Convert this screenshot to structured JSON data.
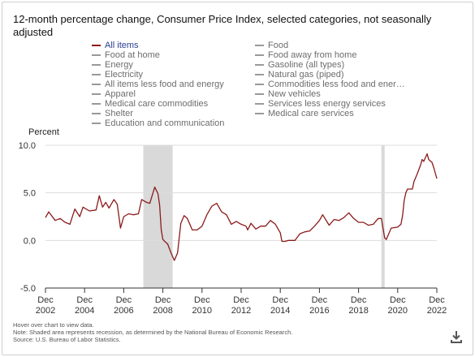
{
  "title": "12-month percentage change, Consumer Price Index, selected categories, not seasonally adjusted",
  "legend": {
    "col1": [
      "All items",
      "Food at home",
      "Energy",
      "Electricity",
      "All items less food and energy",
      "Apparel",
      "Medical care commodities",
      "Shelter",
      "Education and communication"
    ],
    "col2": [
      "Food",
      "Food away from home",
      "Gasoline (all types)",
      "Natural gas (piped)",
      "Commodities less food and ener…",
      "New vehicles",
      "Services less energy services",
      "Medical care services"
    ]
  },
  "footnote": {
    "line1": "Hover over chart to view data.",
    "line2": "Note: Shaded area represents recession, as determined by the National Bureau of Economic Research.",
    "line3": "Source: U.S. Bureau of Labor Statistics."
  },
  "icons": {
    "download": "download-icon"
  },
  "colors": {
    "series": "#8b1a1a",
    "recession": "#d9d9d9",
    "active_legend": "#2a3f8f"
  },
  "chart_data": {
    "type": "line",
    "title": "12-month percentage change, Consumer Price Index, selected categories, not seasonally adjusted",
    "ylabel": "Percent",
    "xlabel": "",
    "ylim": [
      -5.0,
      10.0
    ],
    "y_ticks": [
      "10.0",
      "5.0",
      "0.0",
      "-5.0"
    ],
    "x_ticks": [
      {
        "top": "Dec",
        "bottom": "2002"
      },
      {
        "top": "Dec",
        "bottom": "2004"
      },
      {
        "top": "Dec",
        "bottom": "2006"
      },
      {
        "top": "Dec",
        "bottom": "2008"
      },
      {
        "top": "Dec",
        "bottom": "2010"
      },
      {
        "top": "Dec",
        "bottom": "2012"
      },
      {
        "top": "Dec",
        "bottom": "2014"
      },
      {
        "top": "Dec",
        "bottom": "2016"
      },
      {
        "top": "Dec",
        "bottom": "2018"
      },
      {
        "top": "Dec",
        "bottom": "2020"
      },
      {
        "top": "Dec",
        "bottom": "2022"
      }
    ],
    "xlim": [
      "2002-12",
      "2022-12"
    ],
    "recessions": [
      [
        "2007-12",
        "2009-06"
      ],
      [
        "2020-02",
        "2020-04"
      ]
    ],
    "grid": true,
    "series": [
      {
        "name": "All items",
        "points": [
          [
            "2002-12",
            2.4
          ],
          [
            "2003-02",
            3.0
          ],
          [
            "2003-06",
            2.1
          ],
          [
            "2003-09",
            2.3
          ],
          [
            "2003-12",
            1.9
          ],
          [
            "2004-03",
            1.7
          ],
          [
            "2004-06",
            3.3
          ],
          [
            "2004-09",
            2.5
          ],
          [
            "2004-11",
            3.5
          ],
          [
            "2005-03",
            3.1
          ],
          [
            "2005-07",
            3.2
          ],
          [
            "2005-09",
            4.7
          ],
          [
            "2005-11",
            3.5
          ],
          [
            "2006-01",
            4.0
          ],
          [
            "2006-03",
            3.4
          ],
          [
            "2006-06",
            4.3
          ],
          [
            "2006-08",
            3.8
          ],
          [
            "2006-10",
            1.3
          ],
          [
            "2006-12",
            2.5
          ],
          [
            "2007-03",
            2.8
          ],
          [
            "2007-06",
            2.7
          ],
          [
            "2007-09",
            2.8
          ],
          [
            "2007-11",
            4.3
          ],
          [
            "2008-02",
            4.0
          ],
          [
            "2008-04",
            3.9
          ],
          [
            "2008-07",
            5.6
          ],
          [
            "2008-09",
            4.9
          ],
          [
            "2008-10",
            3.7
          ],
          [
            "2008-11",
            1.1
          ],
          [
            "2008-12",
            0.1
          ],
          [
            "2009-03",
            -0.4
          ],
          [
            "2009-05",
            -1.3
          ],
          [
            "2009-07",
            -2.1
          ],
          [
            "2009-09",
            -1.3
          ],
          [
            "2009-11",
            1.8
          ],
          [
            "2010-01",
            2.6
          ],
          [
            "2010-03",
            2.3
          ],
          [
            "2010-06",
            1.1
          ],
          [
            "2010-09",
            1.1
          ],
          [
            "2010-12",
            1.5
          ],
          [
            "2011-03",
            2.7
          ],
          [
            "2011-06",
            3.6
          ],
          [
            "2011-09",
            3.9
          ],
          [
            "2011-12",
            3.0
          ],
          [
            "2012-03",
            2.7
          ],
          [
            "2012-06",
            1.7
          ],
          [
            "2012-09",
            2.0
          ],
          [
            "2012-12",
            1.7
          ],
          [
            "2013-03",
            1.5
          ],
          [
            "2013-04",
            1.1
          ],
          [
            "2013-06",
            1.8
          ],
          [
            "2013-09",
            1.2
          ],
          [
            "2013-12",
            1.5
          ],
          [
            "2014-03",
            1.5
          ],
          [
            "2014-06",
            2.1
          ],
          [
            "2014-09",
            1.7
          ],
          [
            "2014-12",
            0.8
          ],
          [
            "2015-01",
            -0.1
          ],
          [
            "2015-03",
            -0.1
          ],
          [
            "2015-05",
            0.0
          ],
          [
            "2015-09",
            0.0
          ],
          [
            "2015-12",
            0.7
          ],
          [
            "2016-03",
            0.9
          ],
          [
            "2016-06",
            1.0
          ],
          [
            "2016-09",
            1.5
          ],
          [
            "2016-12",
            2.1
          ],
          [
            "2017-02",
            2.7
          ],
          [
            "2017-06",
            1.6
          ],
          [
            "2017-09",
            2.2
          ],
          [
            "2017-12",
            2.1
          ],
          [
            "2018-03",
            2.4
          ],
          [
            "2018-06",
            2.9
          ],
          [
            "2018-09",
            2.3
          ],
          [
            "2018-12",
            1.9
          ],
          [
            "2019-03",
            1.9
          ],
          [
            "2019-06",
            1.6
          ],
          [
            "2019-09",
            1.7
          ],
          [
            "2019-12",
            2.3
          ],
          [
            "2020-02",
            2.3
          ],
          [
            "2020-04",
            0.3
          ],
          [
            "2020-05",
            0.1
          ],
          [
            "2020-08",
            1.3
          ],
          [
            "2020-12",
            1.4
          ],
          [
            "2021-02",
            1.7
          ],
          [
            "2021-03",
            2.6
          ],
          [
            "2021-04",
            4.2
          ],
          [
            "2021-05",
            5.0
          ],
          [
            "2021-06",
            5.4
          ],
          [
            "2021-09",
            5.4
          ],
          [
            "2021-10",
            6.2
          ],
          [
            "2021-12",
            7.0
          ],
          [
            "2022-02",
            7.9
          ],
          [
            "2022-03",
            8.5
          ],
          [
            "2022-04",
            8.3
          ],
          [
            "2022-06",
            9.1
          ],
          [
            "2022-07",
            8.5
          ],
          [
            "2022-09",
            8.2
          ],
          [
            "2022-10",
            7.7
          ],
          [
            "2022-11",
            7.1
          ],
          [
            "2022-12",
            6.5
          ]
        ]
      }
    ]
  }
}
